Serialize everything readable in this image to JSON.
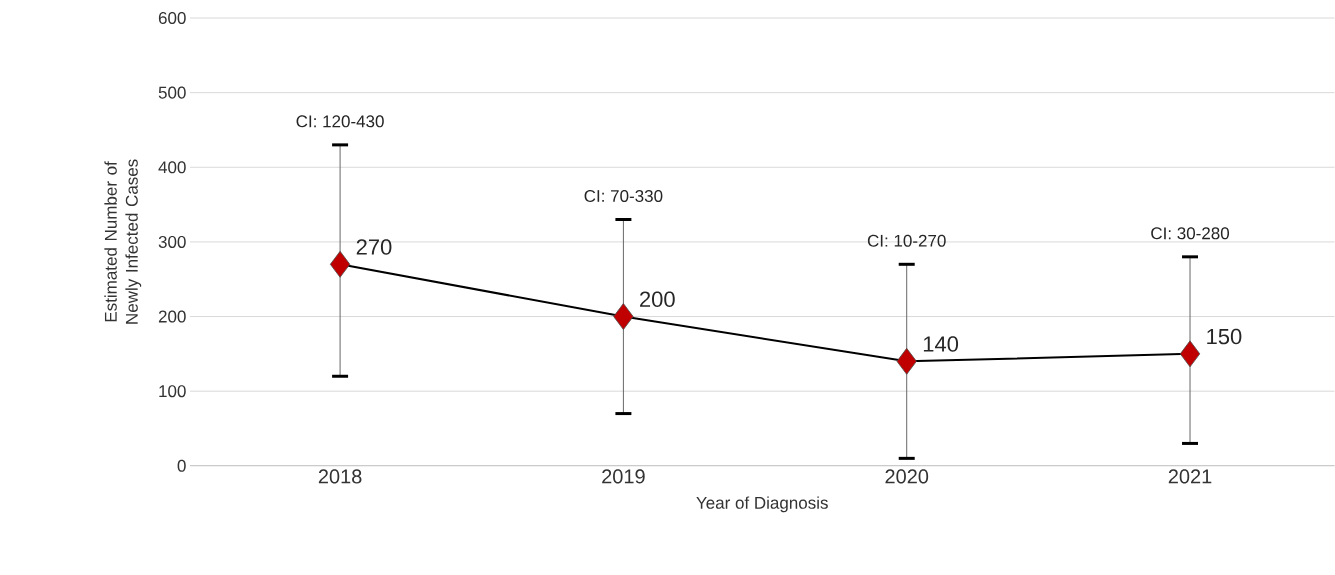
{
  "chart_data": {
    "type": "line",
    "xlabel": "Year of Diagnosis",
    "ylabel": "Estimated Number of Newly Infected Cases",
    "categories": [
      "2018",
      "2019",
      "2020",
      "2021"
    ],
    "series": [
      {
        "color": "#c00000",
        "values": [
          270,
          200,
          140,
          150
        ],
        "errors": [
          [
            120,
            430
          ],
          [
            70,
            330
          ],
          [
            10,
            270
          ],
          [
            30,
            280
          ]
        ]
      }
    ],
    "annotations": [
      {
        "text": "CI: 120-430",
        "x": "2018",
        "y": 430
      },
      {
        "text": "CI: 70-330",
        "x": "2019",
        "y": 330
      },
      {
        "text": "CI: 10-270",
        "x": "2020",
        "y": 270
      },
      {
        "text": "CI: 30-280",
        "x": "2021",
        "y": 280
      }
    ],
    "ylim": [
      0,
      600
    ],
    "yticks": [
      0,
      100,
      200,
      300,
      400,
      500,
      600
    ],
    "grid": "y",
    "marker": "diamond",
    "line_style": "solid",
    "data_labels": true
  }
}
